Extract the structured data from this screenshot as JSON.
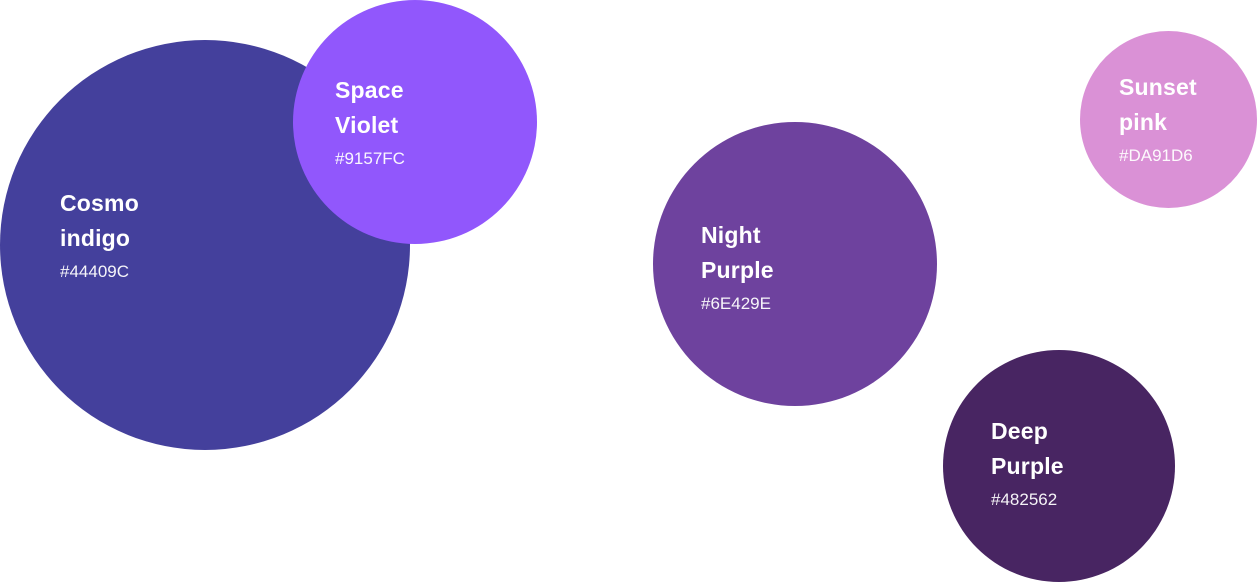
{
  "swatches": [
    {
      "id": "sw-cosmo",
      "name": "Cosmo\nindigo",
      "hex": "#44409C",
      "color": "#44409C"
    },
    {
      "id": "sw-space",
      "name": "Space\nViolet",
      "hex": "#9157FC",
      "color": "#9157FC"
    },
    {
      "id": "sw-night",
      "name": "Night\nPurple",
      "hex": "#6E429E",
      "color": "#6E429E"
    },
    {
      "id": "sw-sunset",
      "name": "Sunset\npink",
      "hex": "#DA91D6",
      "color": "#DA91D6"
    },
    {
      "id": "sw-deep",
      "name": "Deep\nPurple",
      "hex": "#482562",
      "color": "#482562"
    }
  ]
}
